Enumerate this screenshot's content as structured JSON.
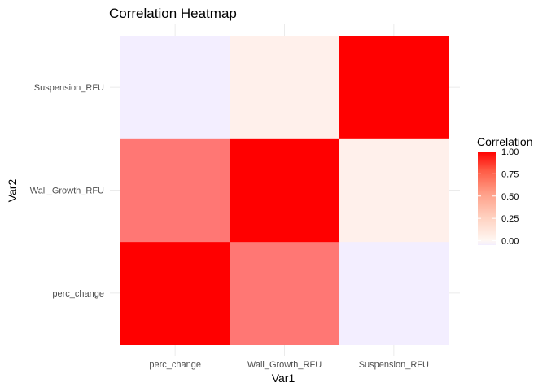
{
  "chart_data": {
    "type": "heatmap",
    "title": "Correlation Heatmap",
    "xlabel": "Var1",
    "ylabel": "Var2",
    "x_categories": [
      "perc_change",
      "Wall_Growth_RFU",
      "Suspension_RFU"
    ],
    "y_categories": [
      "perc_change",
      "Wall_Growth_RFU",
      "Suspension_RFU"
    ],
    "values": [
      [
        1.0,
        0.52,
        -0.05
      ],
      [
        0.52,
        1.0,
        0.03
      ],
      [
        -0.05,
        0.03,
        1.0
      ]
    ],
    "legend": {
      "title": "Correlation",
      "ticks": [
        0.0,
        0.25,
        0.5,
        0.75,
        1.0
      ],
      "tick_labels": [
        "0.00",
        "0.25",
        "0.50",
        "0.75",
        "1.00"
      ],
      "range": [
        -0.05,
        1.0
      ],
      "placement": "right"
    },
    "colors": {
      "low": "#f3eeff",
      "mid": "#fff7f2",
      "high": "#ff0000",
      "grid": "#ebebeb"
    }
  }
}
